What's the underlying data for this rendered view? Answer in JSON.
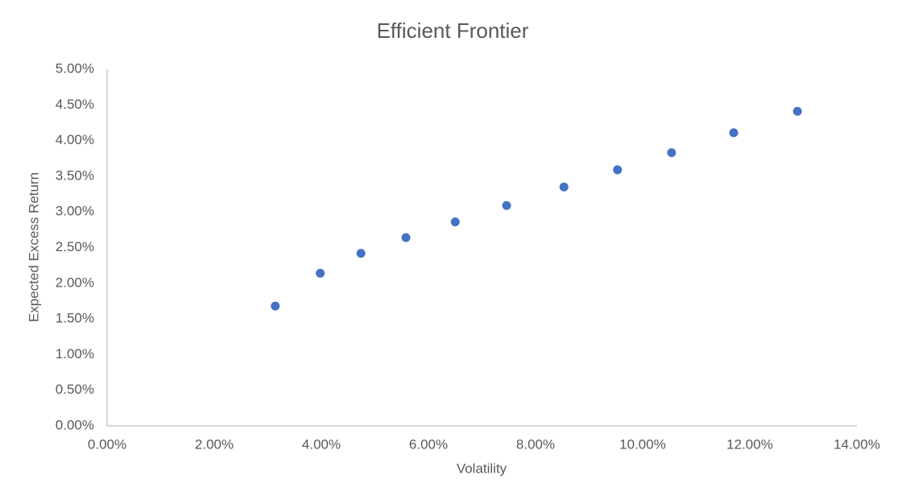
{
  "chart_data": {
    "type": "scatter",
    "title": "Efficient Frontier",
    "x_label": "Volatility",
    "y_label": "Expected Excess Return",
    "series": [
      {
        "name": "Efficient Frontier",
        "color": "#4472c4",
        "x": [
          3.14,
          3.98,
          4.74,
          5.58,
          6.5,
          7.46,
          8.53,
          9.53,
          10.54,
          11.7,
          12.89
        ],
        "values": [
          1.68,
          2.14,
          2.42,
          2.64,
          2.86,
          3.09,
          3.35,
          3.59,
          3.83,
          4.11,
          4.41
        ]
      }
    ],
    "xlim": [
      0,
      14
    ],
    "xticks": [
      {
        "value": 0,
        "label": "0.00%"
      },
      {
        "value": 2,
        "label": "2.00%"
      },
      {
        "value": 4,
        "label": "4.00%"
      },
      {
        "value": 6,
        "label": "6.00%"
      },
      {
        "value": 8,
        "label": "8.00%"
      },
      {
        "value": 10,
        "label": "10.00%"
      },
      {
        "value": 12,
        "label": "12.00%"
      },
      {
        "value": 14,
        "label": "14.00%"
      }
    ],
    "ylim": [
      0,
      5
    ],
    "yticks": [
      {
        "value": 0,
        "label": "0.00%"
      },
      {
        "value": 0.5,
        "label": "0.50%"
      },
      {
        "value": 1,
        "label": "1.00%"
      },
      {
        "value": 1.5,
        "label": "1.50%"
      },
      {
        "value": 2,
        "label": "2.00%"
      },
      {
        "value": 2.5,
        "label": "2.50%"
      },
      {
        "value": 3,
        "label": "3.00%"
      },
      {
        "value": 3.5,
        "label": "3.50%"
      },
      {
        "value": 4,
        "label": "4.00%"
      },
      {
        "value": 4.5,
        "label": "4.50%"
      },
      {
        "value": 5,
        "label": "5.00%"
      }
    ],
    "grid": false
  }
}
